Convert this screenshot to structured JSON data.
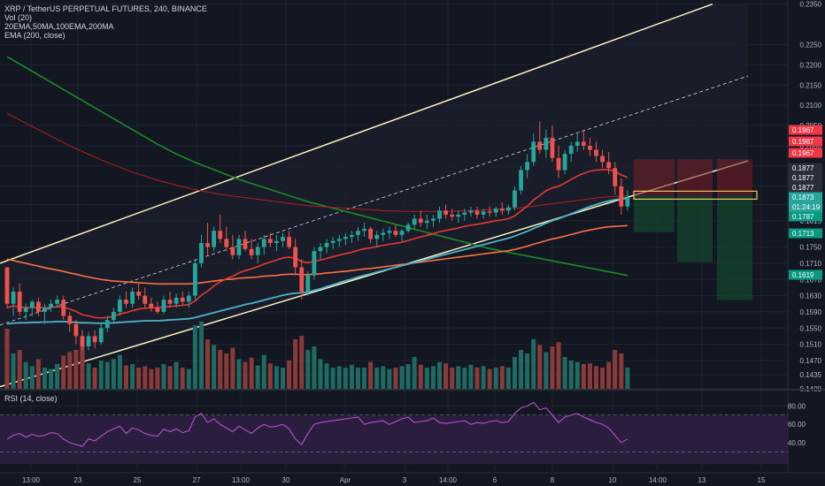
{
  "header": {
    "symbol_line": "XRP / TetherUS PERPETUAL FUTURES, 240, BINANCE",
    "volume_label": "Vol (20)",
    "ma_label": "20EMA,50MA,100EMA,200MA",
    "ema_label": "EMA (200, close)"
  },
  "rsi_panel": {
    "label": "RSI (14, close)",
    "ticks": [
      "80.00",
      "60.00",
      "40.00"
    ],
    "upper_band": 70,
    "lower_band": 30
  },
  "price_axis": {
    "ticks": [
      "0.2350",
      "0.2250",
      "0.2200",
      "0.2150",
      "0.2100",
      "0.2050",
      "0.2000",
      "0.1950",
      "0.1900",
      "0.1855",
      "0.1815",
      "0.1750",
      "0.1710",
      "0.1670",
      "0.1630",
      "0.1590",
      "0.1550",
      "0.1510",
      "0.1470",
      "0.1435",
      "0.1400"
    ],
    "tags": [
      {
        "text": "0.1967",
        "color": "#f23645"
      },
      {
        "text": "0.1967",
        "color": "#f23645"
      },
      {
        "text": "0.1967",
        "color": "#f23645"
      },
      {
        "text": "0.1877",
        "color": "#2a2e39"
      },
      {
        "text": "0.1877",
        "color": "#2a2e39"
      },
      {
        "text": "0.1877",
        "color": "#2a2e39"
      },
      {
        "text": "0.1873",
        "color": "#26a69a"
      },
      {
        "text": "01:24:19",
        "color": "#26a69a"
      },
      {
        "text": "0.1787",
        "color": "#089981"
      },
      {
        "text": "0.1713",
        "color": "#089981"
      },
      {
        "text": "0.1619",
        "color": "#089981"
      }
    ]
  },
  "time_axis": {
    "labels": [
      "13:00",
      "23",
      "25",
      "27",
      "13:00",
      "30",
      "Apr",
      "3",
      "14:00",
      "6",
      "8",
      "10",
      "14:00",
      "13",
      "15"
    ]
  },
  "colors": {
    "background": "#131722",
    "up": "#26a69a",
    "down": "#ef5350",
    "channel": "#fff3c4",
    "ema20": "#e53935",
    "ma50": "#4fb3c8",
    "ema100": "#ff7043",
    "ma200": "#1b8a2b",
    "ema200": "#b71c1c",
    "rsi": "#b054c8"
  },
  "chart_data": {
    "type": "candlestick",
    "title": "XRP / TetherUS PERPETUAL FUTURES, 240, BINANCE",
    "interval": "240",
    "ylim": [
      0.14,
      0.236
    ],
    "grid": true,
    "x_start": "Mar 21",
    "x_end": "Apr 10",
    "last_price": 0.1873,
    "countdown": "01:24:19",
    "levels": {
      "stop_loss": 0.1967,
      "entry": 0.1877,
      "targets": [
        0.1787,
        0.1713,
        0.1619
      ]
    },
    "channel": {
      "lower_start": 0.1405,
      "lower_end": 0.1877,
      "upper_start": 0.171,
      "upper_end": 0.235
    },
    "ohlc": [
      [
        0.17,
        0.17,
        0.16,
        0.161
      ],
      [
        0.161,
        0.165,
        0.158,
        0.164
      ],
      [
        0.164,
        0.166,
        0.158,
        0.159
      ],
      [
        0.159,
        0.161,
        0.157,
        0.16
      ],
      [
        0.16,
        0.162,
        0.158,
        0.1615
      ],
      [
        0.1615,
        0.1625,
        0.158,
        0.159
      ],
      [
        0.159,
        0.161,
        0.156,
        0.16
      ],
      [
        0.16,
        0.162,
        0.159,
        0.161
      ],
      [
        0.161,
        0.163,
        0.16,
        0.162
      ],
      [
        0.162,
        0.163,
        0.157,
        0.158
      ],
      [
        0.158,
        0.159,
        0.154,
        0.156
      ],
      [
        0.156,
        0.157,
        0.151,
        0.153
      ],
      [
        0.153,
        0.1545,
        0.1495,
        0.1505
      ],
      [
        0.1505,
        0.154,
        0.1495,
        0.153
      ],
      [
        0.153,
        0.1545,
        0.15,
        0.1515
      ],
      [
        0.1515,
        0.156,
        0.151,
        0.155
      ],
      [
        0.155,
        0.158,
        0.154,
        0.157
      ],
      [
        0.157,
        0.16,
        0.156,
        0.159
      ],
      [
        0.159,
        0.163,
        0.158,
        0.162
      ],
      [
        0.162,
        0.164,
        0.16,
        0.161
      ],
      [
        0.161,
        0.165,
        0.16,
        0.164
      ],
      [
        0.164,
        0.166,
        0.162,
        0.163
      ],
      [
        0.163,
        0.165,
        0.16,
        0.161
      ],
      [
        0.161,
        0.1625,
        0.159,
        0.16
      ],
      [
        0.16,
        0.1615,
        0.1585,
        0.159
      ],
      [
        0.159,
        0.163,
        0.1585,
        0.162
      ],
      [
        0.162,
        0.164,
        0.16,
        0.161
      ],
      [
        0.161,
        0.1635,
        0.16,
        0.1625
      ],
      [
        0.1625,
        0.164,
        0.1605,
        0.1615
      ],
      [
        0.1615,
        0.164,
        0.16,
        0.163
      ],
      [
        0.163,
        0.172,
        0.162,
        0.171
      ],
      [
        0.171,
        0.178,
        0.17,
        0.176
      ],
      [
        0.176,
        0.181,
        0.173,
        0.175
      ],
      [
        0.175,
        0.18,
        0.174,
        0.179
      ],
      [
        0.179,
        0.183,
        0.176,
        0.177
      ],
      [
        0.177,
        0.18,
        0.174,
        0.175
      ],
      [
        0.175,
        0.178,
        0.172,
        0.173
      ],
      [
        0.173,
        0.178,
        0.172,
        0.177
      ],
      [
        0.177,
        0.179,
        0.174,
        0.1745
      ],
      [
        0.1745,
        0.177,
        0.172,
        0.173
      ],
      [
        0.173,
        0.176,
        0.171,
        0.175
      ],
      [
        0.175,
        0.178,
        0.173,
        0.177
      ],
      [
        0.177,
        0.1785,
        0.175,
        0.176
      ],
      [
        0.176,
        0.178,
        0.174,
        0.1765
      ],
      [
        0.1765,
        0.1785,
        0.175,
        0.1775
      ],
      [
        0.1775,
        0.179,
        0.1745,
        0.175
      ],
      [
        0.175,
        0.177,
        0.168,
        0.17
      ],
      [
        0.17,
        0.172,
        0.162,
        0.164
      ],
      [
        0.164,
        0.169,
        0.163,
        0.168
      ],
      [
        0.168,
        0.175,
        0.167,
        0.174
      ],
      [
        0.174,
        0.176,
        0.172,
        0.175
      ],
      [
        0.175,
        0.177,
        0.1735,
        0.176
      ],
      [
        0.176,
        0.1775,
        0.1745,
        0.1765
      ],
      [
        0.1765,
        0.178,
        0.175,
        0.177
      ],
      [
        0.177,
        0.1785,
        0.1755,
        0.1775
      ],
      [
        0.1775,
        0.179,
        0.176,
        0.178
      ],
      [
        0.178,
        0.18,
        0.1765,
        0.179
      ],
      [
        0.179,
        0.181,
        0.1775,
        0.1795
      ],
      [
        0.1795,
        0.18,
        0.176,
        0.177
      ],
      [
        0.177,
        0.179,
        0.175,
        0.178
      ],
      [
        0.178,
        0.1795,
        0.1765,
        0.1785
      ],
      [
        0.1785,
        0.18,
        0.177,
        0.179
      ],
      [
        0.179,
        0.1805,
        0.1775,
        0.178
      ],
      [
        0.178,
        0.1795,
        0.1765,
        0.179
      ],
      [
        0.179,
        0.181,
        0.1785,
        0.1805
      ],
      [
        0.1805,
        0.183,
        0.1795,
        0.182
      ],
      [
        0.182,
        0.184,
        0.18,
        0.181
      ],
      [
        0.181,
        0.183,
        0.1795,
        0.1815
      ],
      [
        0.1815,
        0.183,
        0.18,
        0.182
      ],
      [
        0.182,
        0.185,
        0.181,
        0.184
      ],
      [
        0.184,
        0.1855,
        0.182,
        0.183
      ],
      [
        0.183,
        0.1845,
        0.1815,
        0.1825
      ],
      [
        0.1825,
        0.184,
        0.181,
        0.183
      ],
      [
        0.183,
        0.1845,
        0.1815,
        0.1835
      ],
      [
        0.1835,
        0.185,
        0.1825,
        0.184
      ],
      [
        0.184,
        0.185,
        0.182,
        0.183
      ],
      [
        0.183,
        0.1845,
        0.182,
        0.1838
      ],
      [
        0.1838,
        0.185,
        0.1825,
        0.1835
      ],
      [
        0.1835,
        0.185,
        0.1825,
        0.1845
      ],
      [
        0.1845,
        0.186,
        0.183,
        0.184
      ],
      [
        0.184,
        0.1855,
        0.183,
        0.1848
      ],
      [
        0.1848,
        0.19,
        0.184,
        0.189
      ],
      [
        0.189,
        0.195,
        0.188,
        0.194
      ],
      [
        0.194,
        0.198,
        0.192,
        0.196
      ],
      [
        0.196,
        0.203,
        0.195,
        0.201
      ],
      [
        0.201,
        0.206,
        0.198,
        0.199
      ],
      [
        0.199,
        0.204,
        0.197,
        0.202
      ],
      [
        0.202,
        0.205,
        0.196,
        0.197
      ],
      [
        0.197,
        0.2,
        0.192,
        0.194
      ],
      [
        0.194,
        0.199,
        0.193,
        0.198
      ],
      [
        0.198,
        0.201,
        0.196,
        0.2
      ],
      [
        0.2,
        0.203,
        0.1985,
        0.201
      ],
      [
        0.201,
        0.204,
        0.199,
        0.2
      ],
      [
        0.2,
        0.202,
        0.1975,
        0.199
      ],
      [
        0.199,
        0.201,
        0.196,
        0.1975
      ],
      [
        0.1975,
        0.199,
        0.1945,
        0.196
      ],
      [
        0.196,
        0.1985,
        0.193,
        0.1945
      ],
      [
        0.1945,
        0.196,
        0.188,
        0.19
      ],
      [
        0.19,
        0.192,
        0.183,
        0.185
      ],
      [
        0.185,
        0.189,
        0.184,
        0.1873
      ]
    ],
    "volume": [
      0.85,
      0.5,
      0.55,
      0.38,
      0.32,
      0.42,
      0.3,
      0.28,
      0.35,
      0.47,
      0.52,
      0.55,
      0.62,
      0.36,
      0.3,
      0.4,
      0.38,
      0.42,
      0.48,
      0.33,
      0.35,
      0.3,
      0.32,
      0.28,
      0.3,
      0.35,
      0.32,
      0.38,
      0.3,
      0.28,
      0.9,
      0.95,
      0.7,
      0.62,
      0.55,
      0.5,
      0.58,
      0.42,
      0.38,
      0.44,
      0.33,
      0.48,
      0.36,
      0.32,
      0.3,
      0.4,
      0.7,
      0.75,
      0.55,
      0.6,
      0.42,
      0.36,
      0.3,
      0.32,
      0.3,
      0.34,
      0.3,
      0.3,
      0.38,
      0.3,
      0.32,
      0.28,
      0.3,
      0.32,
      0.35,
      0.45,
      0.34,
      0.3,
      0.32,
      0.38,
      0.36,
      0.3,
      0.32,
      0.3,
      0.34,
      0.3,
      0.32,
      0.28,
      0.3,
      0.32,
      0.3,
      0.45,
      0.55,
      0.5,
      0.7,
      0.62,
      0.52,
      0.6,
      0.66,
      0.45,
      0.4,
      0.38,
      0.35,
      0.36,
      0.32,
      0.3,
      0.38,
      0.55,
      0.5,
      0.3
    ],
    "rsi": [
      44,
      48,
      50,
      46,
      49,
      47,
      48,
      51,
      50,
      44,
      40,
      38,
      36,
      44,
      42,
      47,
      52,
      55,
      58,
      50,
      56,
      54,
      50,
      48,
      47,
      55,
      52,
      55,
      51,
      53,
      68,
      72,
      62,
      66,
      60,
      56,
      52,
      58,
      54,
      50,
      56,
      60,
      57,
      58,
      60,
      55,
      44,
      38,
      50,
      60,
      62,
      63,
      64,
      65,
      66,
      67,
      68,
      60,
      62,
      63,
      64,
      60,
      63,
      66,
      68,
      62,
      63,
      64,
      67,
      62,
      61,
      62,
      63,
      64,
      60,
      62,
      61,
      63,
      64,
      62,
      63,
      72,
      78,
      80,
      84,
      76,
      78,
      70,
      62,
      68,
      70,
      72,
      68,
      65,
      62,
      60,
      56,
      48,
      40,
      44
    ],
    "ema20": [
      0.16,
      0.1605,
      0.1602,
      0.16,
      0.1601,
      0.16,
      0.16,
      0.1601,
      0.1603,
      0.1601,
      0.1597,
      0.1591,
      0.1583,
      0.158,
      0.1576,
      0.1575,
      0.1576,
      0.1579,
      0.1585,
      0.1588,
      0.1593,
      0.1597,
      0.1599,
      0.16,
      0.16,
      0.1602,
      0.1603,
      0.1605,
      0.1606,
      0.1608,
      0.1617,
      0.1631,
      0.1641,
      0.1654,
      0.1664,
      0.1672,
      0.1678,
      0.1686,
      0.1692,
      0.1696,
      0.1702,
      0.1708,
      0.1713,
      0.1718,
      0.1723,
      0.1725,
      0.1723,
      0.1714,
      0.1711,
      0.1715,
      0.1718,
      0.1722,
      0.1726,
      0.173,
      0.1734,
      0.1737,
      0.1742,
      0.1746,
      0.1748,
      0.1751,
      0.1754,
      0.1757,
      0.1759,
      0.1762,
      0.1766,
      0.1771,
      0.1775,
      0.1779,
      0.1783,
      0.1788,
      0.1791,
      0.1794,
      0.1797,
      0.1801,
      0.1804,
      0.1806,
      0.1809,
      0.1812,
      0.1815,
      0.1817,
      0.182,
      0.1827,
      0.1839,
      0.1851,
      0.1866,
      0.1877,
      0.1889,
      0.1896,
      0.19,
      0.1908,
      0.1917,
      0.1925,
      0.1932,
      0.1937,
      0.194,
      0.1941,
      0.1941,
      0.1937,
      0.1928,
      0.1922
    ],
    "ma50": [
      0.156,
      0.1562,
      0.1563,
      0.1563,
      0.1564,
      0.1564,
      0.1565,
      0.1565,
      0.1566,
      0.1566,
      0.1565,
      0.1564,
      0.1563,
      0.1563,
      0.1562,
      0.1562,
      0.1562,
      0.1563,
      0.1564,
      0.1565,
      0.1566,
      0.1567,
      0.1568,
      0.1568,
      0.1568,
      0.1569,
      0.157,
      0.1571,
      0.1572,
      0.1573,
      0.1576,
      0.158,
      0.1584,
      0.1588,
      0.1592,
      0.1596,
      0.16,
      0.1604,
      0.1608,
      0.1611,
      0.1615,
      0.1619,
      0.1623,
      0.1627,
      0.1631,
      0.1634,
      0.1636,
      0.1637,
      0.1639,
      0.1643,
      0.1647,
      0.1652,
      0.1657,
      0.1662,
      0.1667,
      0.1671,
      0.1676,
      0.168,
      0.1684,
      0.1688,
      0.1692,
      0.1696,
      0.17,
      0.1704,
      0.1708,
      0.1712,
      0.1716,
      0.172,
      0.1724,
      0.1728,
      0.1732,
      0.1736,
      0.174,
      0.1744,
      0.1748,
      0.1752,
      0.1756,
      0.176,
      0.1764,
      0.1768,
      0.1772,
      0.1777,
      0.1783,
      0.1789,
      0.1796,
      0.1802,
      0.1809,
      0.1815,
      0.182,
      0.1826,
      0.1832,
      0.1838,
      0.1844,
      0.185,
      0.1855,
      0.186,
      0.1864,
      0.1867,
      0.1869,
      0.187
    ],
    "ema100": [
      0.172,
      0.1717,
      0.1713,
      0.171,
      0.1706,
      0.1703,
      0.1699,
      0.1696,
      0.1693,
      0.169,
      0.1686,
      0.1683,
      0.1679,
      0.1676,
      0.1673,
      0.167,
      0.1668,
      0.1666,
      0.1665,
      0.1664,
      0.1663,
      0.1662,
      0.1661,
      0.166,
      0.1659,
      0.1659,
      0.1659,
      0.1659,
      0.1659,
      0.1659,
      0.166,
      0.1662,
      0.1664,
      0.1666,
      0.1668,
      0.167,
      0.1671,
      0.1673,
      0.1674,
      0.1675,
      0.1676,
      0.1678,
      0.1679,
      0.168,
      0.1682,
      0.1683,
      0.1683,
      0.1682,
      0.1682,
      0.1683,
      0.1684,
      0.1686,
      0.1687,
      0.1689,
      0.169,
      0.1692,
      0.1694,
      0.1696,
      0.1697,
      0.1699,
      0.1701,
      0.1703,
      0.1705,
      0.1707,
      0.1709,
      0.1711,
      0.1713,
      0.1715,
      0.1717,
      0.1719,
      0.1721,
      0.1723,
      0.1725,
      0.1727,
      0.1729,
      0.1731,
      0.1733,
      0.1735,
      0.1737,
      0.1739,
      0.1741,
      0.1744,
      0.1748,
      0.1752,
      0.1757,
      0.1761,
      0.1766,
      0.177,
      0.1773,
      0.1777,
      0.1781,
      0.1785,
      0.1789,
      0.1792,
      0.1795,
      0.1798,
      0.18,
      0.1801,
      0.1802,
      0.1803
    ],
    "ma200": [
      0.222,
      0.2211,
      0.2202,
      0.2193,
      0.2184,
      0.2175,
      0.2166,
      0.2157,
      0.2148,
      0.2139,
      0.213,
      0.2121,
      0.2112,
      0.2103,
      0.2094,
      0.2085,
      0.2076,
      0.2067,
      0.2058,
      0.2049,
      0.204,
      0.2031,
      0.2022,
      0.2013,
      0.2004,
      0.1996,
      0.1988,
      0.198,
      0.1973,
      0.1966,
      0.1959,
      0.1953,
      0.1947,
      0.1941,
      0.1935,
      0.1929,
      0.1923,
      0.1917,
      0.1912,
      0.1907,
      0.1902,
      0.1897,
      0.1892,
      0.1887,
      0.1882,
      0.1877,
      0.1872,
      0.1867,
      0.1862,
      0.1858,
      0.1854,
      0.185,
      0.1846,
      0.1842,
      0.1838,
      0.1834,
      0.183,
      0.1826,
      0.1822,
      0.1818,
      0.1814,
      0.181,
      0.1806,
      0.1802,
      0.1798,
      0.1794,
      0.179,
      0.1786,
      0.1782,
      0.1778,
      0.1774,
      0.177,
      0.1766,
      0.1762,
      0.1758,
      0.1754,
      0.175,
      0.1746,
      0.1743,
      0.174,
      0.1737,
      0.1734,
      0.1731,
      0.1728,
      0.1725,
      0.1722,
      0.1719,
      0.1716,
      0.1713,
      0.171,
      0.1707,
      0.1704,
      0.1701,
      0.1698,
      0.1695,
      0.1692,
      0.1689,
      0.1686,
      0.1683,
      0.168
    ],
    "ema200": [
      0.208,
      0.2072,
      0.2064,
      0.2056,
      0.2048,
      0.204,
      0.2032,
      0.2024,
      0.2016,
      0.2008,
      0.2,
      0.1993,
      0.1986,
      0.1979,
      0.1972,
      0.1965,
      0.1959,
      0.1953,
      0.1947,
      0.1941,
      0.1935,
      0.193,
      0.1925,
      0.192,
      0.1915,
      0.1911,
      0.1907,
      0.1903,
      0.1899,
      0.1895,
      0.1892,
      0.1889,
      0.1886,
      0.1883,
      0.188,
      0.1878,
      0.1876,
      0.1874,
      0.1872,
      0.187,
      0.1868,
      0.1866,
      0.1864,
      0.1862,
      0.186,
      0.1858,
      0.1856,
      0.1854,
      0.1852,
      0.1851,
      0.185,
      0.1849,
      0.1848,
      0.1847,
      0.1846,
      0.1845,
      0.1844,
      0.1843,
      0.1842,
      0.1841,
      0.184,
      0.1839,
      0.1839,
      0.1838,
      0.1838,
      0.1838,
      0.1838,
      0.1838,
      0.1838,
      0.1838,
      0.1838,
      0.1838,
      0.1839,
      0.1839,
      0.184,
      0.184,
      0.1841,
      0.1842,
      0.1843,
      0.1844,
      0.1845,
      0.1846,
      0.1847,
      0.1849,
      0.1851,
      0.1853,
      0.1855,
      0.1857,
      0.1859,
      0.1861,
      0.1863,
      0.1865,
      0.1867,
      0.1869,
      0.1871,
      0.1873,
      0.1874,
      0.1875,
      0.1876,
      0.1877
    ]
  }
}
